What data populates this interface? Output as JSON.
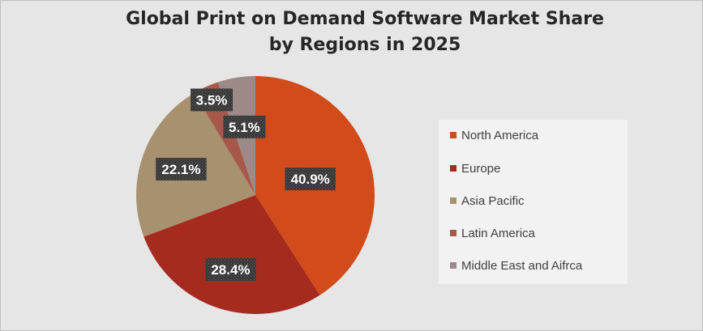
{
  "chart_data": {
    "type": "pie",
    "title": "Global Print on Demand Software Market Share by Regions in 2025",
    "title_lines": [
      "Global Print on Demand Software Market Share",
      "by Regions in 2025"
    ],
    "categories": [
      "North America",
      "Europe",
      "Asia Pacific",
      "Latin America",
      "Middle East and Aifrca"
    ],
    "values": [
      40.9,
      28.4,
      22.1,
      3.5,
      5.1
    ],
    "data_labels": [
      "40.9%",
      "28.4%",
      "22.1%",
      "3.5%",
      "5.1%"
    ],
    "colors": [
      "#d24b1a",
      "#a52b1e",
      "#a8916f",
      "#a8584b",
      "#9b8a87"
    ],
    "legend_position": "right"
  }
}
